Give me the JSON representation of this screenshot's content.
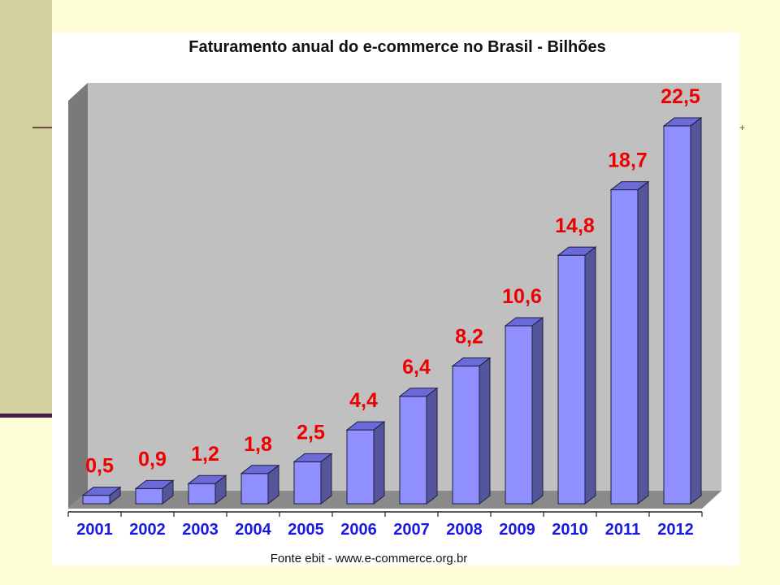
{
  "chart_data": {
    "type": "bar",
    "title": "Faturamento anual do e-commerce no Brasil - Bilhões",
    "categories": [
      "2001",
      "2002",
      "2003",
      "2004",
      "2005",
      "2006",
      "2007",
      "2008",
      "2009",
      "2010",
      "2011",
      "2012"
    ],
    "values": [
      0.5,
      0.9,
      1.2,
      1.8,
      2.5,
      4.4,
      6.4,
      8.2,
      10.6,
      14.8,
      18.7,
      22.5
    ],
    "value_labels": [
      "0,5",
      "0,9",
      "1,2",
      "1,8",
      "2,5",
      "4,4",
      "6,4",
      "8,2",
      "10,6",
      "14,8",
      "18,7",
      "22,5"
    ],
    "source": "Fonte ebit -  www.e-commerce.org.br",
    "ylim": [
      0,
      25
    ],
    "grid": false,
    "three_d": true,
    "colors": {
      "bar_front": "#8f8fff",
      "bar_top": "#6a6ad8",
      "bar_side": "#55559c",
      "back_wall": "#c0c0c0",
      "left_wall": "#7a7a7a",
      "floor": "#8a8a8a",
      "value_label": "#ee0000",
      "category_label": "#1a1ae0"
    }
  }
}
